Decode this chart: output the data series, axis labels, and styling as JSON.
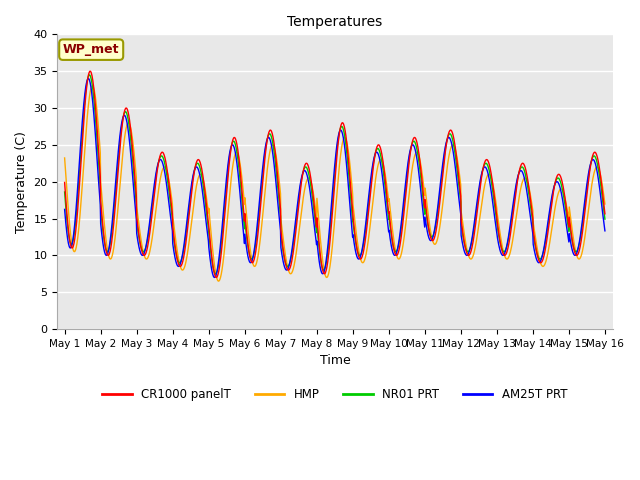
{
  "title": "Temperatures",
  "xlabel": "Time",
  "ylabel": "Temperature (C)",
  "ylim": [
    0,
    40
  ],
  "annotation": "WP_met",
  "background_color": "#e8e8e8",
  "plot_bg": "#e8e8e8",
  "legend": [
    "CR1000 panelT",
    "HMP",
    "NR01 PRT",
    "AM25T PRT"
  ],
  "colors": [
    "red",
    "#ffaa00",
    "#00cc00",
    "blue"
  ],
  "xtick_labels": [
    "May 1",
    "May 2",
    "May 3",
    "May 4",
    "May 5",
    "May 6",
    "May 7",
    "May 8",
    "May 9",
    "May 10",
    "May 11",
    "May 12",
    "May 13",
    "May 14",
    "May 15",
    "May 16"
  ],
  "ytick_positions": [
    0,
    5,
    10,
    15,
    20,
    25,
    30,
    35,
    40
  ],
  "n_days": 15,
  "figsize": [
    6.4,
    4.8
  ],
  "dpi": 100,
  "line_width": 1.0
}
